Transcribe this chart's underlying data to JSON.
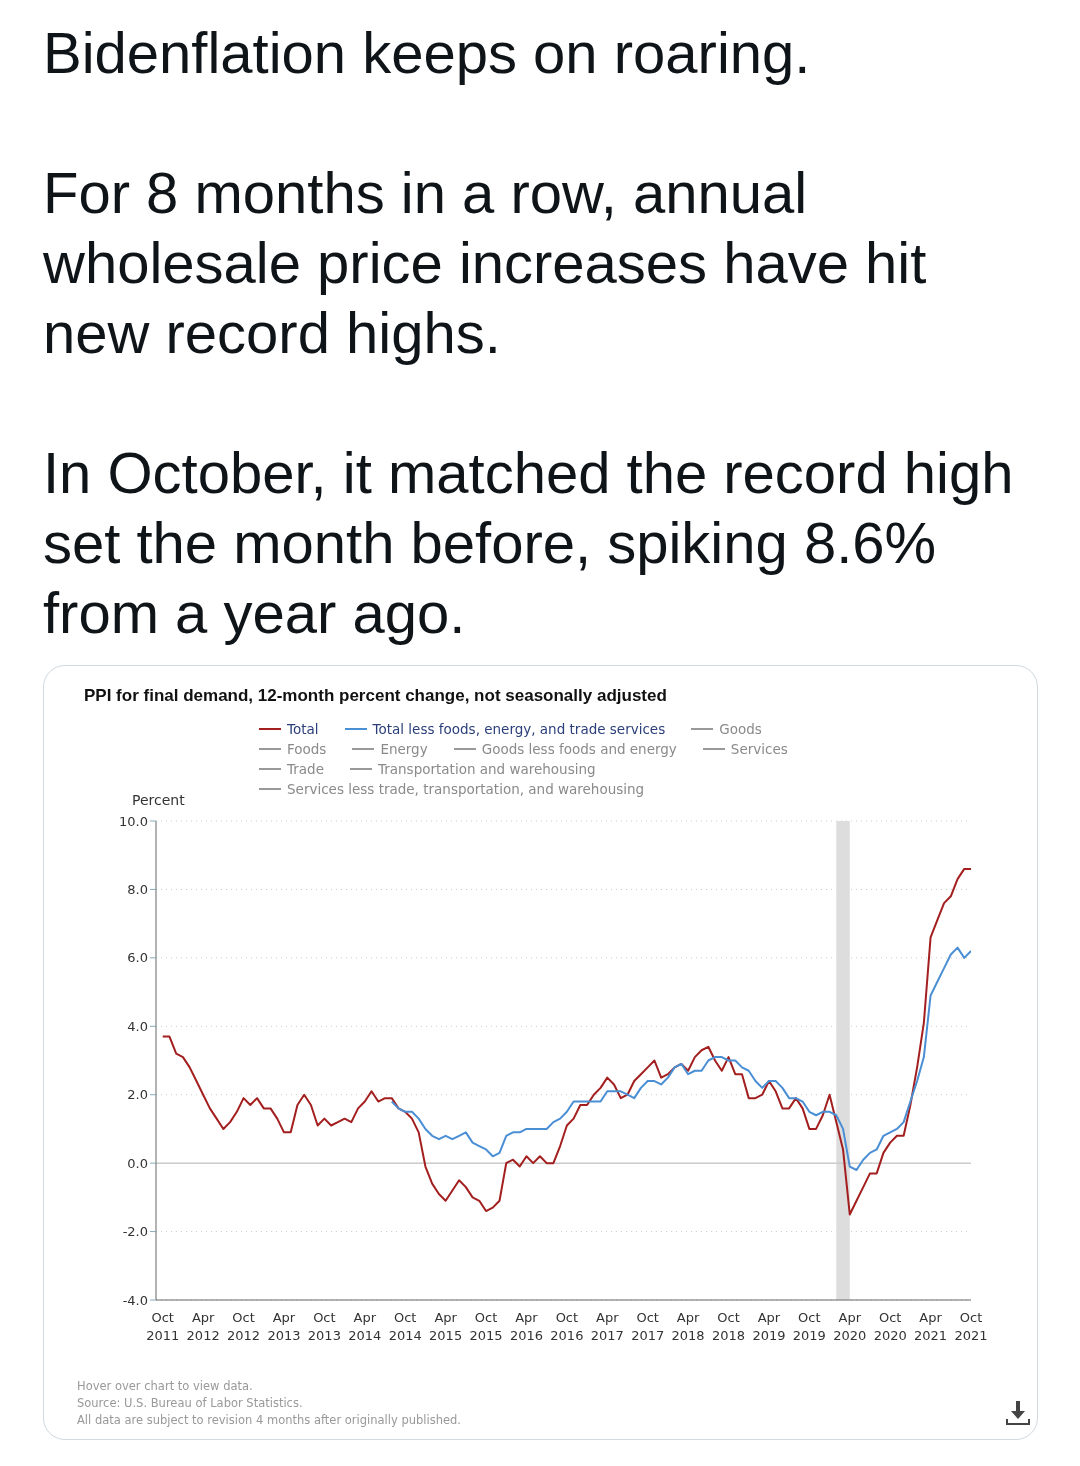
{
  "chart_data": {
    "type": "line",
    "title": "PPI for final demand, 12-month percent change, not seasonally adjusted",
    "ylabel": "Percent",
    "annotations": [
      "Bidenflation keeps on roaring.",
      "For 8 months in a row, annual wholesale price increases have hit new record highs.",
      "In October, it matched the record high set the month before, spiking 8.6% from a year ago.",
      "Hover over chart to view data.",
      "Source: U.S. Bureau of Labor Statistics.",
      "All data are subject to revision 4 months after originally published."
    ],
    "x": [
      "2011-10",
      "2011-11",
      "2011-12",
      "2012-01",
      "2012-02",
      "2012-03",
      "2012-04",
      "2012-05",
      "2012-06",
      "2012-07",
      "2012-08",
      "2012-09",
      "2012-10",
      "2012-11",
      "2012-12",
      "2013-01",
      "2013-02",
      "2013-03",
      "2013-04",
      "2013-05",
      "2013-06",
      "2013-07",
      "2013-08",
      "2013-09",
      "2013-10",
      "2013-11",
      "2013-12",
      "2014-01",
      "2014-02",
      "2014-03",
      "2014-04",
      "2014-05",
      "2014-06",
      "2014-07",
      "2014-08",
      "2014-09",
      "2014-10",
      "2014-11",
      "2014-12",
      "2015-01",
      "2015-02",
      "2015-03",
      "2015-04",
      "2015-05",
      "2015-06",
      "2015-07",
      "2015-08",
      "2015-09",
      "2015-10",
      "2015-11",
      "2015-12",
      "2016-01",
      "2016-02",
      "2016-03",
      "2016-04",
      "2016-05",
      "2016-06",
      "2016-07",
      "2016-08",
      "2016-09",
      "2016-10",
      "2016-11",
      "2016-12",
      "2017-01",
      "2017-02",
      "2017-03",
      "2017-04",
      "2017-05",
      "2017-06",
      "2017-07",
      "2017-08",
      "2017-09",
      "2017-10",
      "2017-11",
      "2017-12",
      "2018-01",
      "2018-02",
      "2018-03",
      "2018-04",
      "2018-05",
      "2018-06",
      "2018-07",
      "2018-08",
      "2018-09",
      "2018-10",
      "2018-11",
      "2018-12",
      "2019-01",
      "2019-02",
      "2019-03",
      "2019-04",
      "2019-05",
      "2019-06",
      "2019-07",
      "2019-08",
      "2019-09",
      "2019-10",
      "2019-11",
      "2019-12",
      "2020-01",
      "2020-02",
      "2020-03",
      "2020-04",
      "2020-05",
      "2020-06",
      "2020-07",
      "2020-08",
      "2020-09",
      "2020-10",
      "2020-11",
      "2020-12",
      "2021-01",
      "2021-02",
      "2021-03",
      "2021-04",
      "2021-05",
      "2021-06",
      "2021-07",
      "2021-08",
      "2021-09",
      "2021-10"
    ],
    "series": [
      {
        "name": "Total",
        "color": "#a31f1f",
        "values": [
          3.7,
          3.7,
          3.2,
          3.1,
          2.8,
          2.4,
          2.0,
          1.6,
          1.3,
          1.0,
          1.2,
          1.5,
          1.9,
          1.7,
          1.9,
          1.6,
          1.6,
          1.3,
          0.9,
          0.9,
          1.7,
          2.0,
          1.7,
          1.1,
          1.3,
          1.1,
          1.2,
          1.3,
          1.2,
          1.6,
          1.8,
          2.1,
          1.8,
          1.9,
          1.9,
          1.6,
          1.5,
          1.3,
          0.9,
          -0.1,
          -0.6,
          -0.9,
          -1.1,
          -0.8,
          -0.5,
          -0.7,
          -1.0,
          -1.1,
          -1.4,
          -1.3,
          -1.1,
          0.0,
          0.1,
          -0.1,
          0.2,
          0.0,
          0.2,
          0.0,
          0.0,
          0.5,
          1.1,
          1.3,
          1.7,
          1.7,
          2.0,
          2.2,
          2.5,
          2.3,
          1.9,
          2.0,
          2.4,
          2.6,
          2.8,
          3.0,
          2.5,
          2.6,
          2.8,
          2.9,
          2.7,
          3.1,
          3.3,
          3.4,
          3.0,
          2.7,
          3.1,
          2.6,
          2.6,
          1.9,
          1.9,
          2.0,
          2.4,
          2.1,
          1.6,
          1.6,
          1.9,
          1.6,
          1.0,
          1.0,
          1.4,
          2.0,
          1.2,
          0.4,
          -1.5,
          -1.1,
          -0.7,
          -0.3,
          -0.3,
          0.3,
          0.6,
          0.8,
          0.8,
          1.7,
          2.8,
          4.1,
          6.6,
          7.1,
          7.6,
          7.8,
          8.3,
          8.6,
          8.6
        ]
      },
      {
        "name": "Total less foods, energy, and trade services",
        "color": "#4a8fd4",
        "values": [
          null,
          null,
          null,
          null,
          null,
          null,
          null,
          null,
          null,
          null,
          null,
          null,
          null,
          null,
          null,
          null,
          null,
          null,
          null,
          null,
          null,
          null,
          null,
          null,
          null,
          null,
          null,
          null,
          null,
          null,
          null,
          null,
          null,
          null,
          1.8,
          1.6,
          1.5,
          1.5,
          1.3,
          1.0,
          0.8,
          0.7,
          0.8,
          0.7,
          0.8,
          0.9,
          0.6,
          0.5,
          0.4,
          0.2,
          0.3,
          0.8,
          0.9,
          0.9,
          1.0,
          1.0,
          1.0,
          1.0,
          1.2,
          1.3,
          1.5,
          1.8,
          1.8,
          1.8,
          1.8,
          1.8,
          2.1,
          2.1,
          2.1,
          2.0,
          1.9,
          2.2,
          2.4,
          2.4,
          2.3,
          2.5,
          2.8,
          2.9,
          2.6,
          2.7,
          2.7,
          3.0,
          3.1,
          3.1,
          3.0,
          3.0,
          2.8,
          2.7,
          2.4,
          2.2,
          2.4,
          2.4,
          2.2,
          1.9,
          1.9,
          1.8,
          1.5,
          1.4,
          1.5,
          1.5,
          1.4,
          1.0,
          -0.1,
          -0.2,
          0.1,
          0.3,
          0.4,
          0.8,
          0.9,
          1.0,
          1.2,
          1.8,
          2.4,
          3.1,
          4.9,
          5.3,
          5.7,
          6.1,
          6.3,
          6.0,
          6.2
        ]
      },
      {
        "name": "Goods",
        "color": "#999999",
        "values": [
          null,
          null,
          null,
          null,
          null,
          null,
          null,
          null,
          null,
          null,
          null,
          null,
          null,
          null,
          null,
          null,
          null,
          null,
          null,
          null,
          null,
          null,
          null,
          null,
          null,
          null,
          null,
          null,
          null,
          null,
          null,
          null,
          null,
          null,
          null,
          null,
          null,
          null,
          null,
          null,
          null,
          null,
          null,
          null,
          null,
          null,
          null,
          null,
          null,
          null,
          null,
          null,
          null,
          null,
          null,
          null,
          null,
          null,
          null,
          null,
          null,
          null,
          null,
          null,
          null,
          null,
          null,
          null,
          null,
          null,
          null,
          null,
          null,
          null,
          null,
          null,
          null,
          null,
          null,
          null,
          null,
          null,
          null,
          null,
          null,
          null,
          null,
          null,
          null,
          null,
          null,
          null,
          null,
          null,
          null,
          null,
          null,
          null,
          null,
          null,
          null,
          null,
          null,
          null,
          null,
          null,
          null,
          null,
          null,
          null,
          null,
          null,
          null,
          null,
          null,
          null,
          null,
          null,
          null,
          null,
          null
        ]
      },
      {
        "name": "Foods",
        "color": "#999999",
        "values": [
          null,
          null,
          null,
          null,
          null,
          null,
          null,
          null,
          null,
          null,
          null,
          null,
          null,
          null,
          null,
          null,
          null,
          null,
          null,
          null,
          null,
          null,
          null,
          null,
          null,
          null,
          null,
          null,
          null,
          null,
          null,
          null,
          null,
          null,
          null,
          null,
          null,
          null,
          null,
          null,
          null,
          null,
          null,
          null,
          null,
          null,
          null,
          null,
          null,
          null,
          null,
          null,
          null,
          null,
          null,
          null,
          null,
          null,
          null,
          null,
          null,
          null,
          null,
          null,
          null,
          null,
          null,
          null,
          null,
          null,
          null,
          null,
          null,
          null,
          null,
          null,
          null,
          null,
          null,
          null,
          null,
          null,
          null,
          null,
          null,
          null,
          null,
          null,
          null,
          null,
          null,
          null,
          null,
          null,
          null,
          null,
          null,
          null,
          null,
          null,
          null,
          null,
          null,
          null,
          null,
          null,
          null,
          null,
          null,
          null,
          null,
          null,
          null,
          null,
          null,
          null,
          null,
          null,
          null,
          null,
          null
        ]
      },
      {
        "name": "Energy",
        "color": "#999999",
        "values": [
          null,
          null,
          null,
          null,
          null,
          null,
          null,
          null,
          null,
          null,
          null,
          null,
          null,
          null,
          null,
          null,
          null,
          null,
          null,
          null,
          null,
          null,
          null,
          null,
          null,
          null,
          null,
          null,
          null,
          null,
          null,
          null,
          null,
          null,
          null,
          null,
          null,
          null,
          null,
          null,
          null,
          null,
          null,
          null,
          null,
          null,
          null,
          null,
          null,
          null,
          null,
          null,
          null,
          null,
          null,
          null,
          null,
          null,
          null,
          null,
          null,
          null,
          null,
          null,
          null,
          null,
          null,
          null,
          null,
          null,
          null,
          null,
          null,
          null,
          null,
          null,
          null,
          null,
          null,
          null,
          null,
          null,
          null,
          null,
          null,
          null,
          null,
          null,
          null,
          null,
          null,
          null,
          null,
          null,
          null,
          null,
          null,
          null,
          null,
          null,
          null,
          null,
          null,
          null,
          null,
          null,
          null,
          null,
          null,
          null,
          null,
          null,
          null,
          null,
          null,
          null,
          null,
          null,
          null,
          null,
          null
        ]
      },
      {
        "name": "Goods less foods and energy",
        "color": "#999999",
        "values": [
          null,
          null,
          null,
          null,
          null,
          null,
          null,
          null,
          null,
          null,
          null,
          null,
          null,
          null,
          null,
          null,
          null,
          null,
          null,
          null,
          null,
          null,
          null,
          null,
          null,
          null,
          null,
          null,
          null,
          null,
          null,
          null,
          null,
          null,
          null,
          null,
          null,
          null,
          null,
          null,
          null,
          null,
          null,
          null,
          null,
          null,
          null,
          null,
          null,
          null,
          null,
          null,
          null,
          null,
          null,
          null,
          null,
          null,
          null,
          null,
          null,
          null,
          null,
          null,
          null,
          null,
          null,
          null,
          null,
          null,
          null,
          null,
          null,
          null,
          null,
          null,
          null,
          null,
          null,
          null,
          null,
          null,
          null,
          null,
          null,
          null,
          null,
          null,
          null,
          null,
          null,
          null,
          null,
          null,
          null,
          null,
          null,
          null,
          null,
          null,
          null,
          null,
          null,
          null,
          null,
          null,
          null,
          null,
          null,
          null,
          null,
          null,
          null,
          null,
          null,
          null,
          null,
          null,
          null,
          null,
          null
        ]
      },
      {
        "name": "Services",
        "color": "#999999",
        "values": [
          null,
          null,
          null,
          null,
          null,
          null,
          null,
          null,
          null,
          null,
          null,
          null,
          null,
          null,
          null,
          null,
          null,
          null,
          null,
          null,
          null,
          null,
          null,
          null,
          null,
          null,
          null,
          null,
          null,
          null,
          null,
          null,
          null,
          null,
          null,
          null,
          null,
          null,
          null,
          null,
          null,
          null,
          null,
          null,
          null,
          null,
          null,
          null,
          null,
          null,
          null,
          null,
          null,
          null,
          null,
          null,
          null,
          null,
          null,
          null,
          null,
          null,
          null,
          null,
          null,
          null,
          null,
          null,
          null,
          null,
          null,
          null,
          null,
          null,
          null,
          null,
          null,
          null,
          null,
          null,
          null,
          null,
          null,
          null,
          null,
          null,
          null,
          null,
          null,
          null,
          null,
          null,
          null,
          null,
          null,
          null,
          null,
          null,
          null,
          null,
          null,
          null,
          null,
          null,
          null,
          null,
          null,
          null,
          null,
          null,
          null,
          null,
          null,
          null,
          null,
          null,
          null,
          null,
          null,
          null,
          null
        ]
      },
      {
        "name": "Trade",
        "color": "#999999",
        "values": [
          null,
          null,
          null,
          null,
          null,
          null,
          null,
          null,
          null,
          null,
          null,
          null,
          null,
          null,
          null,
          null,
          null,
          null,
          null,
          null,
          null,
          null,
          null,
          null,
          null,
          null,
          null,
          null,
          null,
          null,
          null,
          null,
          null,
          null,
          null,
          null,
          null,
          null,
          null,
          null,
          null,
          null,
          null,
          null,
          null,
          null,
          null,
          null,
          null,
          null,
          null,
          null,
          null,
          null,
          null,
          null,
          null,
          null,
          null,
          null,
          null,
          null,
          null,
          null,
          null,
          null,
          null,
          null,
          null,
          null,
          null,
          null,
          null,
          null,
          null,
          null,
          null,
          null,
          null,
          null,
          null,
          null,
          null,
          null,
          null,
          null,
          null,
          null,
          null,
          null,
          null,
          null,
          null,
          null,
          null,
          null,
          null,
          null,
          null,
          null,
          null,
          null,
          null,
          null,
          null,
          null,
          null,
          null,
          null,
          null,
          null,
          null,
          null,
          null,
          null,
          null,
          null,
          null,
          null,
          null,
          null
        ]
      },
      {
        "name": "Transportation and warehousing",
        "color": "#999999",
        "values": [
          null,
          null,
          null,
          null,
          null,
          null,
          null,
          null,
          null,
          null,
          null,
          null,
          null,
          null,
          null,
          null,
          null,
          null,
          null,
          null,
          null,
          null,
          null,
          null,
          null,
          null,
          null,
          null,
          null,
          null,
          null,
          null,
          null,
          null,
          null,
          null,
          null,
          null,
          null,
          null,
          null,
          null,
          null,
          null,
          null,
          null,
          null,
          null,
          null,
          null,
          null,
          null,
          null,
          null,
          null,
          null,
          null,
          null,
          null,
          null,
          null,
          null,
          null,
          null,
          null,
          null,
          null,
          null,
          null,
          null,
          null,
          null,
          null,
          null,
          null,
          null,
          null,
          null,
          null,
          null,
          null,
          null,
          null,
          null,
          null,
          null,
          null,
          null,
          null,
          null,
          null,
          null,
          null,
          null,
          null,
          null,
          null,
          null,
          null,
          null,
          null,
          null,
          null,
          null,
          null,
          null,
          null,
          null,
          null,
          null,
          null,
          null,
          null,
          null,
          null,
          null,
          null,
          null,
          null,
          null,
          null
        ]
      },
      {
        "name": "Services less trade, transportation, and warehousing",
        "color": "#999999",
        "values": [
          null,
          null,
          null,
          null,
          null,
          null,
          null,
          null,
          null,
          null,
          null,
          null,
          null,
          null,
          null,
          null,
          null,
          null,
          null,
          null,
          null,
          null,
          null,
          null,
          null,
          null,
          null,
          null,
          null,
          null,
          null,
          null,
          null,
          null,
          null,
          null,
          null,
          null,
          null,
          null,
          null,
          null,
          null,
          null,
          null,
          null,
          null,
          null,
          null,
          null,
          null,
          null,
          null,
          null,
          null,
          null,
          null,
          null,
          null,
          null,
          null,
          null,
          null,
          null,
          null,
          null,
          null,
          null,
          null,
          null,
          null,
          null,
          null,
          null,
          null,
          null,
          null,
          null,
          null,
          null,
          null,
          null,
          null,
          null,
          null,
          null,
          null,
          null,
          null,
          null,
          null,
          null,
          null,
          null,
          null,
          null,
          null,
          null,
          null,
          null,
          null,
          null,
          null,
          null,
          null,
          null,
          null,
          null,
          null,
          null,
          null,
          null,
          null,
          null,
          null,
          null,
          null,
          null,
          null,
          null,
          null
        ]
      }
    ],
    "xlim": [
      "2011-09",
      "2021-10"
    ],
    "xticks": [
      {
        "value": "2011-10",
        "label": "Oct 2011"
      },
      {
        "value": "2012-04",
        "label": "Apr 2012"
      },
      {
        "value": "2012-10",
        "label": "Oct 2012"
      },
      {
        "value": "2013-04",
        "label": "Apr 2013"
      },
      {
        "value": "2013-10",
        "label": "Oct 2013"
      },
      {
        "value": "2014-04",
        "label": "Apr 2014"
      },
      {
        "value": "2014-10",
        "label": "Oct 2014"
      },
      {
        "value": "2015-04",
        "label": "Apr 2015"
      },
      {
        "value": "2015-10",
        "label": "Oct 2015"
      },
      {
        "value": "2016-04",
        "label": "Apr 2016"
      },
      {
        "value": "2016-10",
        "label": "Oct 2016"
      },
      {
        "value": "2017-04",
        "label": "Apr 2017"
      },
      {
        "value": "2017-10",
        "label": "Oct 2017"
      },
      {
        "value": "2018-04",
        "label": "Apr 2018"
      },
      {
        "value": "2018-10",
        "label": "Oct 2018"
      },
      {
        "value": "2019-04",
        "label": "Apr 2019"
      },
      {
        "value": "2019-10",
        "label": "Oct 2019"
      },
      {
        "value": "2020-04",
        "label": "Apr 2020"
      },
      {
        "value": "2020-10",
        "label": "Oct 2020"
      },
      {
        "value": "2021-04",
        "label": "Apr 2021"
      },
      {
        "value": "2021-10",
        "label": "Oct 2021"
      }
    ],
    "ylim": [
      -4,
      10
    ],
    "yticks": [
      {
        "value": -4,
        "label": "-4.0"
      },
      {
        "value": -2,
        "label": "-2.0"
      },
      {
        "value": 0,
        "label": "0.0"
      },
      {
        "value": 2,
        "label": "2.0"
      },
      {
        "value": 4,
        "label": "4.0"
      },
      {
        "value": 6,
        "label": "6.0"
      },
      {
        "value": 8,
        "label": "8.0"
      },
      {
        "value": 10,
        "label": "10.0"
      }
    ],
    "bands": [
      {
        "axis": "x",
        "from": "2020-02",
        "to": "2020-04",
        "color": "#dddddd"
      }
    ],
    "ref_lines": [
      {
        "axis": "y",
        "value": 0,
        "color": "#cccccc"
      }
    ],
    "grid": "y",
    "legend": "top",
    "marker": "none",
    "line_style": "solid"
  }
}
